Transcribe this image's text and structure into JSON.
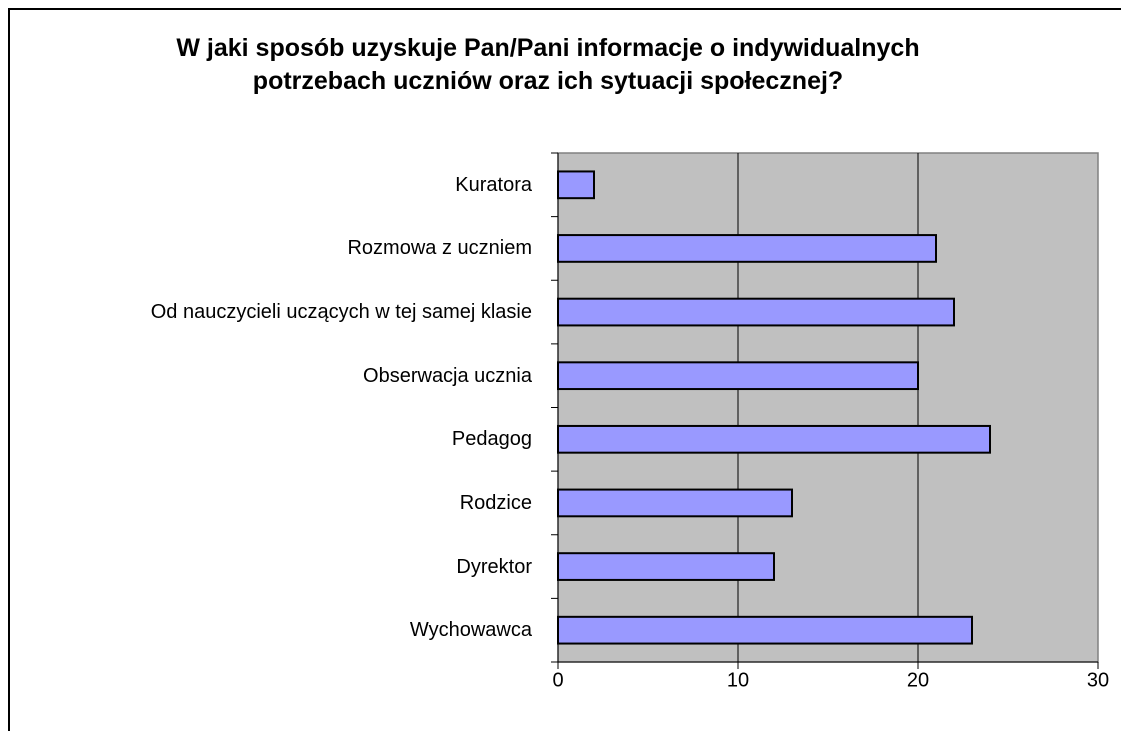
{
  "chart_data": {
    "type": "bar",
    "orientation": "horizontal",
    "title": "W jaki sposób uzyskuje Pan/Pani informacje o indywidualnych potrzebach uczniów oraz ich sytuacji społecznej?",
    "categories": [
      "Kuratora",
      "Rozmowa z uczniem",
      "Od nauczycieli uczących w tej samej klasie",
      "Obserwacja ucznia",
      "Pedagog",
      "Rodzice",
      "Dyrektor",
      "Wychowawca"
    ],
    "values": [
      2,
      21,
      22,
      20,
      24,
      13,
      12,
      23
    ],
    "color": "#9999ff",
    "xlim": [
      0,
      30
    ],
    "xticks": [
      0,
      10,
      20,
      30
    ],
    "grid": true
  }
}
